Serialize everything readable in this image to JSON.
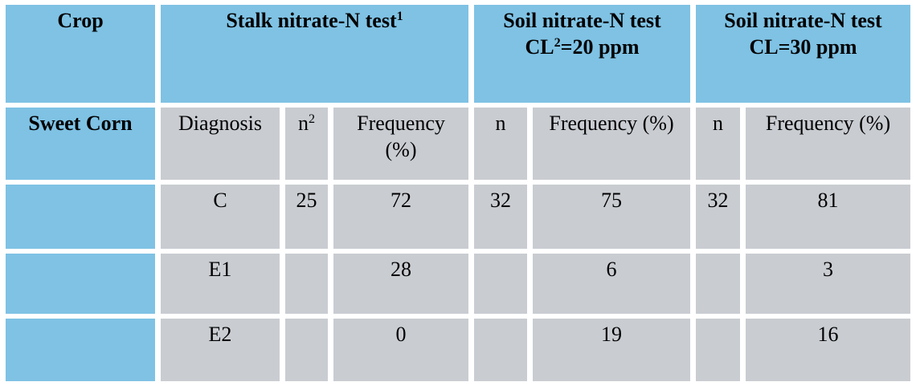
{
  "colors": {
    "header_blue": "#7fc2e4",
    "cell_gray": "#c9ccd1",
    "text": "#000000",
    "background": "#ffffff"
  },
  "table": {
    "header": {
      "crop": "Crop",
      "stalk": {
        "text": "Stalk nitrate-N test",
        "sup": "1"
      },
      "soil20": {
        "line1": "Soil nitrate-N test",
        "cl_text": "CL",
        "cl_sup": "2",
        "cl_rest": "=20 ppm"
      },
      "soil30": {
        "line1": "Soil nitrate-N test",
        "line2": "CL=30 ppm"
      }
    },
    "subheader": {
      "row_label": "Sweet Corn",
      "diagnosis": "Diagnosis",
      "n_stalk_text": "n",
      "n_stalk_sup": "2",
      "freq_stalk_line1": "Frequency",
      "freq_stalk_line2": "(%)",
      "n_soil20": "n",
      "freq_soil20": "Frequency (%)",
      "n_soil30": "n",
      "freq_soil30": "Frequency (%)"
    },
    "rows": [
      {
        "diagnosis": "C",
        "n_stalk": "25",
        "freq_stalk": "72",
        "n_soil20": "32",
        "freq_soil20": "75",
        "n_soil30": "32",
        "freq_soil30": "81"
      },
      {
        "diagnosis": "E1",
        "n_stalk": "",
        "freq_stalk": "28",
        "n_soil20": "",
        "freq_soil20": "6",
        "n_soil30": "",
        "freq_soil30": "3"
      },
      {
        "diagnosis": "E2",
        "n_stalk": "",
        "freq_stalk": "0",
        "n_soil20": "",
        "freq_soil20": "19",
        "n_soil30": "",
        "freq_soil30": "16"
      }
    ]
  }
}
